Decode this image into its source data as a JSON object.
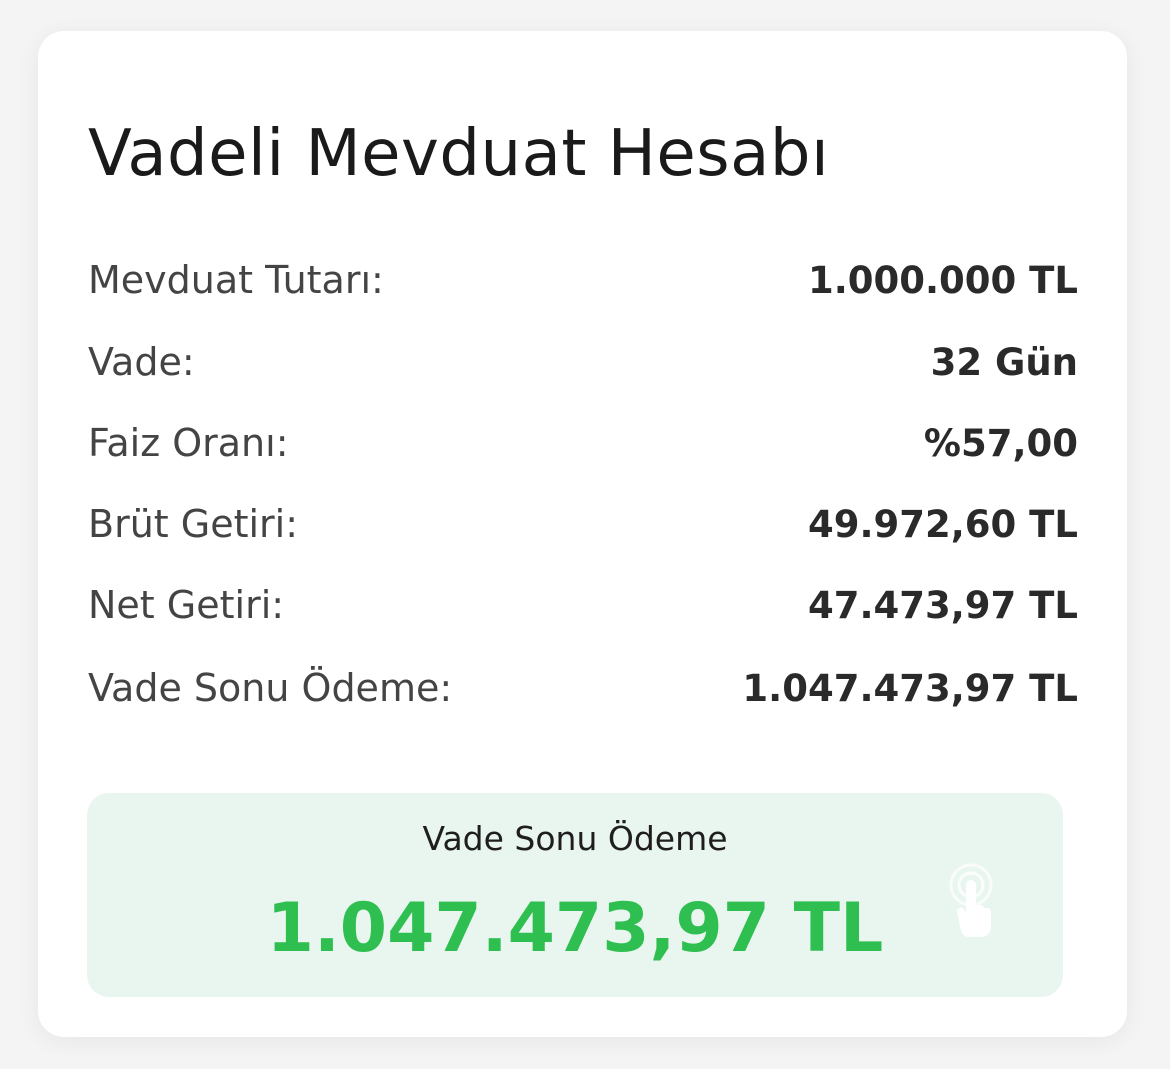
{
  "title": "Vadeli Mevduat Hesabı",
  "rows": [
    {
      "label": "Mevduat Tutarı:",
      "value": "1.000.000 TL"
    },
    {
      "label": "Vade:",
      "value": "32 Gün"
    },
    {
      "label": "Faiz Oranı:",
      "value": "%57,00"
    },
    {
      "label": "Brüt Getiri:",
      "value": "49.972,60 TL"
    },
    {
      "label": "Net Getiri:",
      "value": "47.473,97 TL"
    },
    {
      "label": "Vade Sonu Ödeme:",
      "value": "1.047.473,97 TL"
    }
  ],
  "summary": {
    "label": "Vade Sonu Ödeme",
    "value": "1.047.473,97 TL",
    "icon": "tap-hand-icon"
  },
  "colors": {
    "accent_green": "#2fbf50",
    "summary_bg": "#e9f6f0"
  }
}
